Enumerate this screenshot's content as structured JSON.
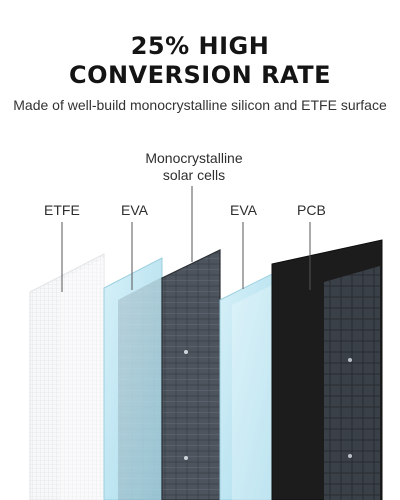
{
  "header": {
    "title_line1": "25% HIGH",
    "title_line2": "CONVERSION RATE",
    "subtitle": "Made of well-build monocrystalline silicon and ETFE surface"
  },
  "layers": {
    "etfe": "ETFE",
    "eva_top": "EVA",
    "cells_line1": "Monocrystalline",
    "cells_line2": "solar cells",
    "eva_bottom": "EVA",
    "pcb": "PCB"
  },
  "colors": {
    "etfe": "#f2f3f4",
    "eva": "#bfe6f2",
    "cells": "#4a5058",
    "pcb": "#1c1c1c",
    "callout_line": "#555555"
  }
}
